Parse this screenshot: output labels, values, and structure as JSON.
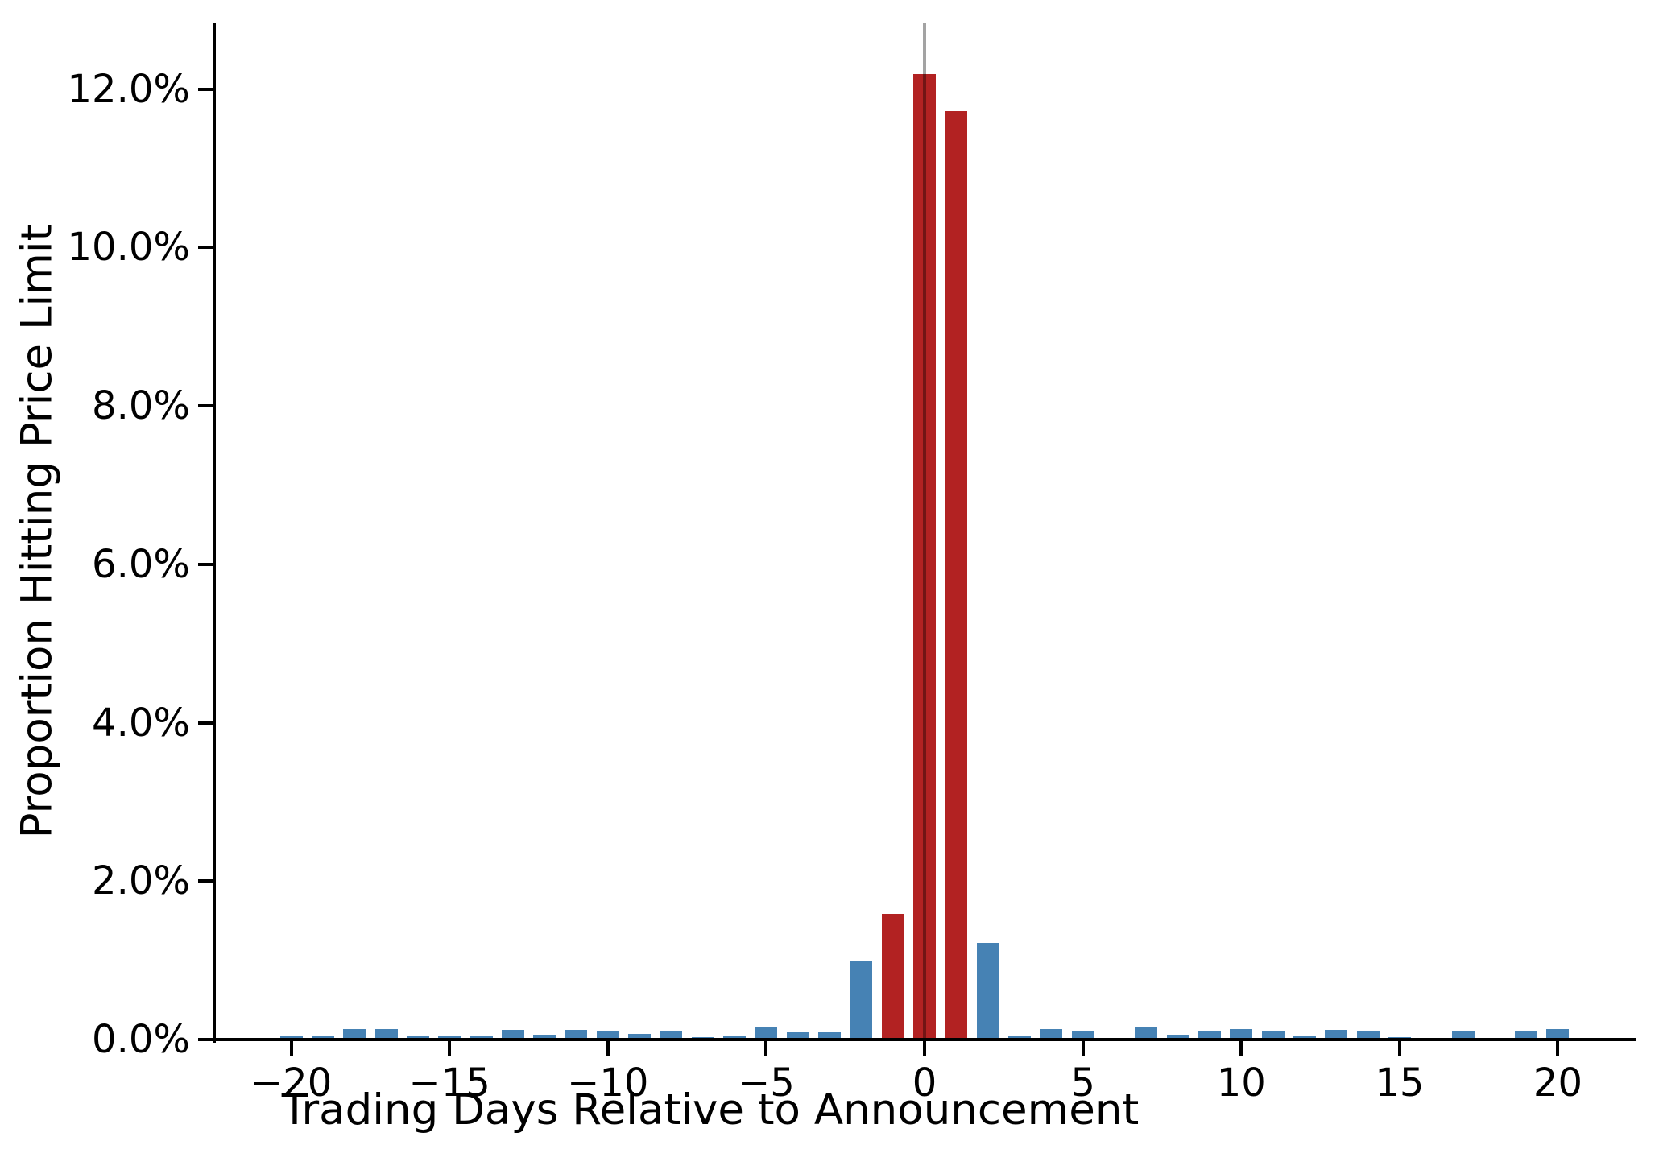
{
  "chart_data": {
    "type": "bar",
    "title": "",
    "xlabel": "Trading Days Relative to Announcement",
    "ylabel": "Proportion Hitting Price Limit",
    "x": [
      -20,
      -19,
      -18,
      -17,
      -16,
      -15,
      -14,
      -13,
      -12,
      -11,
      -10,
      -9,
      -8,
      -7,
      -6,
      -5,
      -4,
      -3,
      -2,
      -1,
      0,
      1,
      2,
      3,
      4,
      5,
      6,
      7,
      8,
      9,
      10,
      11,
      12,
      13,
      14,
      15,
      16,
      17,
      18,
      19,
      20
    ],
    "values": [
      0.05,
      0.05,
      0.13,
      0.13,
      0.04,
      0.05,
      0.05,
      0.12,
      0.06,
      0.12,
      0.1,
      0.07,
      0.1,
      0.03,
      0.05,
      0.16,
      0.09,
      0.09,
      1.0,
      1.59,
      12.19,
      11.72,
      1.22,
      0.05,
      0.13,
      0.1,
      0,
      0.16,
      0.06,
      0.1,
      0.13,
      0.11,
      0.05,
      0.12,
      0.1,
      0.03,
      0,
      0.1,
      0.02,
      0.11,
      0.13
    ],
    "unit": "%",
    "bar_color_default": "#4682B4",
    "bar_color_highlight": "#B22222",
    "highlight_days": [
      -1,
      0,
      1
    ],
    "annotation_line": {
      "x": 0,
      "color": "rgba(0,0,0,0.36)"
    },
    "x_ticks": [
      -20,
      -15,
      -10,
      -5,
      0,
      5,
      10,
      15,
      20
    ],
    "x_tick_labels": [
      "−20",
      "−15",
      "−10",
      "−5",
      "0",
      "5",
      "10",
      "15",
      "20"
    ],
    "y_ticks": [
      0,
      2,
      4,
      6,
      8,
      10,
      12
    ],
    "y_tick_labels": [
      "0.0%",
      "2.0%",
      "4.0%",
      "6.0%",
      "8.0%",
      "10.0%",
      "12.0%"
    ],
    "xlim": [
      -22.38,
      22.48
    ],
    "ylim": [
      0,
      12.84
    ],
    "grid": false,
    "legend_position": "none",
    "axis_color": "#000000"
  }
}
